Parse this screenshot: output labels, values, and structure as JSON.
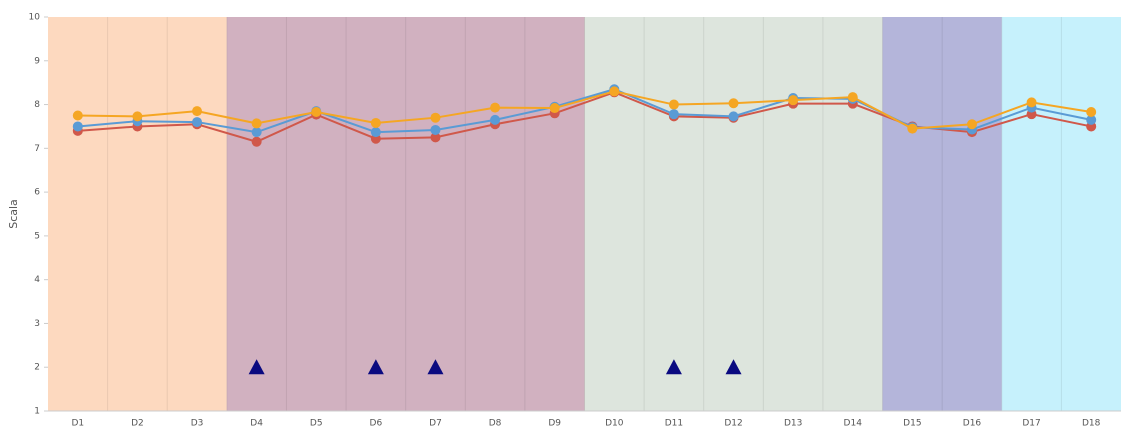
{
  "chart_data": {
    "type": "line",
    "y_label": "Scala",
    "categories": [
      "D1",
      "D2",
      "D3",
      "D4",
      "D5",
      "D6",
      "D7",
      "D8",
      "D9",
      "D10",
      "D11",
      "D12",
      "D13",
      "D14",
      "D15",
      "D16",
      "D17",
      "D18"
    ],
    "series": [
      {
        "color": "#d0584a",
        "marker": "circle",
        "values": [
          7.4,
          7.5,
          7.55,
          7.15,
          7.77,
          7.22,
          7.25,
          7.55,
          7.8,
          8.28,
          7.73,
          7.7,
          8.02,
          8.02,
          7.5,
          7.37,
          7.78,
          7.5
        ]
      },
      {
        "color": "#5a9bd5",
        "marker": "circle",
        "values": [
          7.5,
          7.62,
          7.6,
          7.37,
          7.85,
          7.37,
          7.42,
          7.65,
          7.95,
          8.35,
          7.78,
          7.73,
          8.15,
          8.13,
          7.48,
          7.43,
          7.93,
          7.65
        ]
      },
      {
        "color": "#f5a623",
        "marker": "circle",
        "values": [
          7.75,
          7.73,
          7.85,
          7.57,
          7.83,
          7.58,
          7.7,
          7.93,
          7.92,
          8.3,
          8.0,
          8.03,
          8.1,
          8.17,
          7.45,
          7.55,
          8.05,
          7.83
        ]
      },
      {
        "color": "#0a0a80",
        "marker": "triangle",
        "line": false,
        "values": [
          null,
          null,
          null,
          2,
          null,
          2,
          2,
          null,
          null,
          null,
          2,
          2,
          null,
          null,
          null,
          null,
          null,
          null
        ]
      }
    ],
    "regions": [
      {
        "from": "D1",
        "to": "D3",
        "color": "#fdd9bf"
      },
      {
        "from": "D4",
        "to": "D9",
        "color": "#d1b1c0"
      },
      {
        "from": "D10",
        "to": "D14",
        "color": "#dde5dd"
      },
      {
        "from": "D15",
        "to": "D16",
        "color": "#b4b5da"
      },
      {
        "from": "D17",
        "to": "D18",
        "color": "#c6f1fc"
      }
    ],
    "ylim": [
      1,
      10
    ],
    "yticks": [
      1,
      2,
      3,
      4,
      5,
      6,
      7,
      8,
      9,
      10
    ]
  }
}
